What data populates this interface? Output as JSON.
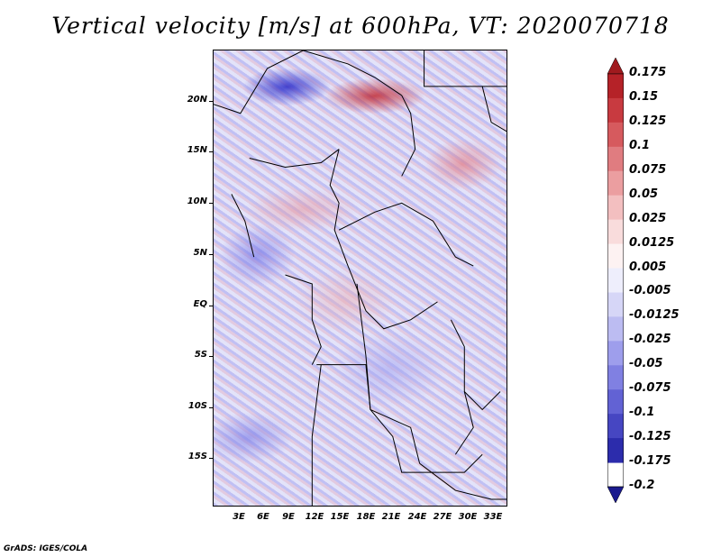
{
  "title": "Vertical velocity [m/s] at 600hPa, VT: 2020070718",
  "latitude_labels": [
    "20N",
    "15N",
    "10N",
    "5N",
    "EQ",
    "5S",
    "10S",
    "15S"
  ],
  "longitude_labels": [
    "3E",
    "6E",
    "9E",
    "12E",
    "15E",
    "18E",
    "21E",
    "24E",
    "27E",
    "30E",
    "33E"
  ],
  "colorbar": {
    "labels": [
      "0.175",
      "0.15",
      "0.125",
      "0.1",
      "0.075",
      "0.05",
      "0.025",
      "0.0125",
      "0.005",
      "-0.005",
      "-0.0125",
      "-0.025",
      "-0.05",
      "-0.075",
      "-0.1",
      "-0.125",
      "-0.175",
      "-0.2"
    ],
    "colors": [
      "#a01a1e",
      "#b52228",
      "#c83a40",
      "#d65a5e",
      "#e07c80",
      "#eb9ea0",
      "#f3bfc0",
      "#f9dcdc",
      "#fdf2f2",
      "#eeeefc",
      "#d6d6f7",
      "#bcbcf2",
      "#9e9eec",
      "#8080e2",
      "#6262d4",
      "#4646c2",
      "#2c2cac",
      "#1a1a8e"
    ]
  },
  "footer": "GrADS: IGES/COLA"
}
